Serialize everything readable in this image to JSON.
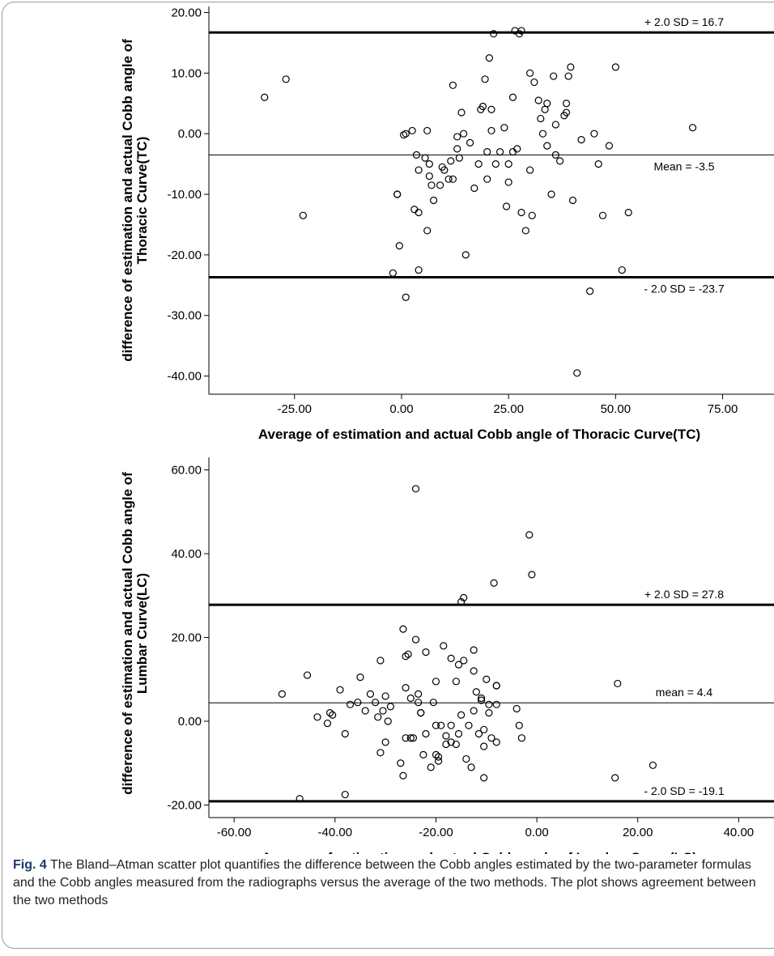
{
  "chart_data": [
    {
      "type": "scatter",
      "xlabel": "Average of estimation and actual Cobb angle of Thoracic Curve(TC)",
      "ylabel_lines": [
        "difference of estimation and actual Cobb angle of",
        "Thoracic Curve(TC)"
      ],
      "xlim": [
        -45,
        87
      ],
      "ylim": [
        -43,
        21
      ],
      "xticks": [
        -25,
        0,
        25,
        50,
        75
      ],
      "xtick_labels": [
        "-25.00",
        "0.00",
        "25.00",
        "50.00",
        "75.00"
      ],
      "yticks": [
        20,
        10,
        0,
        -10,
        -20,
        -30,
        -40
      ],
      "ytick_labels": [
        "20.00",
        "10.00",
        "0.00",
        "-10.00",
        "-20.00",
        "-30.00",
        "-40.00"
      ],
      "reference_lines": [
        {
          "y": 16.7,
          "label": "+ 2.0 SD = 16.7",
          "style": "thick",
          "label_pos": "above"
        },
        {
          "y": -3.5,
          "label": "Mean = -3.5",
          "style": "thin",
          "label_pos": "below"
        },
        {
          "y": -23.7,
          "label": "- 2.0 SD = -23.7",
          "style": "thick",
          "label_pos": "below"
        }
      ],
      "grid": false,
      "marker": "open-circle",
      "points": [
        [
          -32,
          6
        ],
        [
          -27,
          9
        ],
        [
          -23,
          -13.5
        ],
        [
          -2,
          -23
        ],
        [
          -1,
          -10
        ],
        [
          -1,
          -10
        ],
        [
          -0.5,
          -18.5
        ],
        [
          0.5,
          -0.2
        ],
        [
          1,
          0
        ],
        [
          1,
          -27
        ],
        [
          2.5,
          0.5
        ],
        [
          3,
          -12.5
        ],
        [
          3.5,
          -3.5
        ],
        [
          4,
          -13
        ],
        [
          4,
          -6
        ],
        [
          4,
          -22.5
        ],
        [
          5.5,
          -4
        ],
        [
          6,
          0.5
        ],
        [
          6,
          -16
        ],
        [
          6.5,
          -5
        ],
        [
          6.5,
          -7
        ],
        [
          7,
          -8.5
        ],
        [
          7.5,
          -11
        ],
        [
          9,
          -8.5
        ],
        [
          9.5,
          -5.5
        ],
        [
          10,
          -6
        ],
        [
          11,
          -7.5
        ],
        [
          11.5,
          -4.5
        ],
        [
          12,
          -7.5
        ],
        [
          12,
          8
        ],
        [
          13,
          -0.5
        ],
        [
          13,
          -2.5
        ],
        [
          13.5,
          -4
        ],
        [
          14,
          3.5
        ],
        [
          14.5,
          0
        ],
        [
          15,
          -20
        ],
        [
          16,
          -1.5
        ],
        [
          17,
          -9
        ],
        [
          18,
          -5
        ],
        [
          18.5,
          4
        ],
        [
          19,
          4.5
        ],
        [
          19.5,
          9
        ],
        [
          20,
          -3
        ],
        [
          20,
          -7.5
        ],
        [
          20.5,
          12.5
        ],
        [
          21,
          0.5
        ],
        [
          21,
          4
        ],
        [
          21.5,
          16.5
        ],
        [
          22,
          -5
        ],
        [
          23,
          -3
        ],
        [
          24,
          1
        ],
        [
          24.5,
          -12
        ],
        [
          25,
          -5
        ],
        [
          25,
          -8
        ],
        [
          26,
          6
        ],
        [
          26,
          -3
        ],
        [
          26.5,
          17
        ],
        [
          27,
          -2.5
        ],
        [
          27.5,
          16.5
        ],
        [
          28,
          17
        ],
        [
          28,
          -13
        ],
        [
          29,
          -16
        ],
        [
          30,
          10
        ],
        [
          30,
          -6
        ],
        [
          30.5,
          -13.5
        ],
        [
          31,
          8.5
        ],
        [
          32,
          5.5
        ],
        [
          32.5,
          2.5
        ],
        [
          33,
          0
        ],
        [
          33.5,
          4
        ],
        [
          34,
          -2
        ],
        [
          34,
          5
        ],
        [
          35,
          -10
        ],
        [
          35.5,
          9.5
        ],
        [
          36,
          -3.5
        ],
        [
          36,
          1.5
        ],
        [
          37,
          -4.5
        ],
        [
          38,
          3
        ],
        [
          38.5,
          5
        ],
        [
          38.5,
          3.5
        ],
        [
          39,
          9.5
        ],
        [
          39.5,
          11
        ],
        [
          40,
          -11
        ],
        [
          41,
          -39.5
        ],
        [
          42,
          -1
        ],
        [
          44,
          -26
        ],
        [
          45,
          0
        ],
        [
          46,
          -5
        ],
        [
          47,
          -13.5
        ],
        [
          48.5,
          -2
        ],
        [
          50,
          11
        ],
        [
          51.5,
          -22.5
        ],
        [
          53,
          -13
        ],
        [
          68,
          1
        ]
      ]
    },
    {
      "type": "scatter",
      "xlabel": "Average of estimation and actual Cobb angle of Lumbar Curve(LC)",
      "ylabel_lines": [
        "difference of estimation and actual Cobb angle of",
        "Lumbar Curve(LC)"
      ],
      "xlim": [
        -65,
        47
      ],
      "ylim": [
        -23,
        63
      ],
      "xticks": [
        -60,
        -40,
        -20,
        0,
        20,
        40
      ],
      "xtick_labels": [
        "-60.00",
        "-40.00",
        "-20.00",
        "0.00",
        "20.00",
        "40.00"
      ],
      "yticks": [
        60,
        40,
        20,
        0,
        -20
      ],
      "ytick_labels": [
        "60.00",
        "40.00",
        "20.00",
        "0.00",
        "-20.00"
      ],
      "reference_lines": [
        {
          "y": 27.8,
          "label": "+ 2.0 SD = 27.8",
          "style": "thick",
          "label_pos": "above"
        },
        {
          "y": 4.4,
          "label": "mean = 4.4",
          "style": "thin",
          "label_pos": "above"
        },
        {
          "y": -19.1,
          "label": "- 2.0 SD = -19.1",
          "style": "thick",
          "label_pos": "above"
        }
      ],
      "grid": false,
      "marker": "open-circle",
      "points": [
        [
          -50.5,
          6.5
        ],
        [
          -47,
          -18.5
        ],
        [
          -45.5,
          11
        ],
        [
          -43.5,
          1
        ],
        [
          -41.5,
          -0.5
        ],
        [
          -41,
          2
        ],
        [
          -40.5,
          1.5
        ],
        [
          -39,
          7.5
        ],
        [
          -38,
          -17.5
        ],
        [
          -38,
          -3
        ],
        [
          -37,
          4
        ],
        [
          -35.5,
          4.5
        ],
        [
          -35,
          10.5
        ],
        [
          -34,
          2.5
        ],
        [
          -33,
          6.5
        ],
        [
          -32,
          4.5
        ],
        [
          -31.5,
          1
        ],
        [
          -31,
          -7.5
        ],
        [
          -31,
          14.5
        ],
        [
          -30.5,
          2.5
        ],
        [
          -30,
          -5
        ],
        [
          -30,
          6
        ],
        [
          -29.5,
          0
        ],
        [
          -29,
          3.5
        ],
        [
          -27,
          -10
        ],
        [
          -26.5,
          22
        ],
        [
          -26.5,
          -13
        ],
        [
          -26,
          8
        ],
        [
          -26,
          15.5
        ],
        [
          -26,
          -4
        ],
        [
          -25.5,
          16
        ],
        [
          -25,
          5.5
        ],
        [
          -25,
          -4
        ],
        [
          -24.5,
          -4
        ],
        [
          -24,
          19.5
        ],
        [
          -24,
          55.5
        ],
        [
          -23.5,
          4.5
        ],
        [
          -23.5,
          6.5
        ],
        [
          -23,
          2
        ],
        [
          -23,
          2
        ],
        [
          -22.5,
          -8
        ],
        [
          -22,
          16.5
        ],
        [
          -22,
          -3
        ],
        [
          -21,
          -11
        ],
        [
          -20.5,
          4.5
        ],
        [
          -20,
          9.5
        ],
        [
          -20,
          -1
        ],
        [
          -20,
          -8
        ],
        [
          -19.5,
          -8.5
        ],
        [
          -19.5,
          -9.5
        ],
        [
          -19,
          -1
        ],
        [
          -18.5,
          18
        ],
        [
          -18,
          -3.5
        ],
        [
          -18,
          -5.5
        ],
        [
          -17,
          15
        ],
        [
          -17,
          -1
        ],
        [
          -17,
          -5
        ],
        [
          -16,
          9.5
        ],
        [
          -16,
          -5.5
        ],
        [
          -15.5,
          13.5
        ],
        [
          -15.5,
          -3
        ],
        [
          -15,
          1.5
        ],
        [
          -15,
          28.5
        ],
        [
          -14.5,
          29.5
        ],
        [
          -14.5,
          14.5
        ],
        [
          -14,
          -9
        ],
        [
          -13.5,
          -1
        ],
        [
          -13,
          -11
        ],
        [
          -12.5,
          12
        ],
        [
          -12.5,
          2.5
        ],
        [
          -12.5,
          17
        ],
        [
          -12,
          7
        ],
        [
          -11.5,
          -3
        ],
        [
          -11,
          5
        ],
        [
          -11,
          5.5
        ],
        [
          -10.5,
          -6
        ],
        [
          -10.5,
          -2
        ],
        [
          -10.5,
          -13.5
        ],
        [
          -10,
          10
        ],
        [
          -9.5,
          4
        ],
        [
          -9.5,
          2
        ],
        [
          -9,
          -4
        ],
        [
          -8.5,
          33
        ],
        [
          -8,
          8.5
        ],
        [
          -8,
          8.5
        ],
        [
          -8,
          4
        ],
        [
          -8,
          -5
        ],
        [
          -4,
          3
        ],
        [
          -3.5,
          -1
        ],
        [
          -3,
          -4
        ],
        [
          -1.5,
          44.5
        ],
        [
          -1,
          35
        ],
        [
          15.5,
          -13.5
        ],
        [
          16,
          9
        ],
        [
          23,
          -10.5
        ]
      ]
    }
  ],
  "caption": {
    "label": "Fig. 4",
    "text": "The Bland–Atman scatter plot quantifies the difference between the Cobb angles estimated by the two-parameter formulas and the Cobb angles measured from the radiographs versus the average of the two methods. The plot shows agreement between the two methods"
  }
}
